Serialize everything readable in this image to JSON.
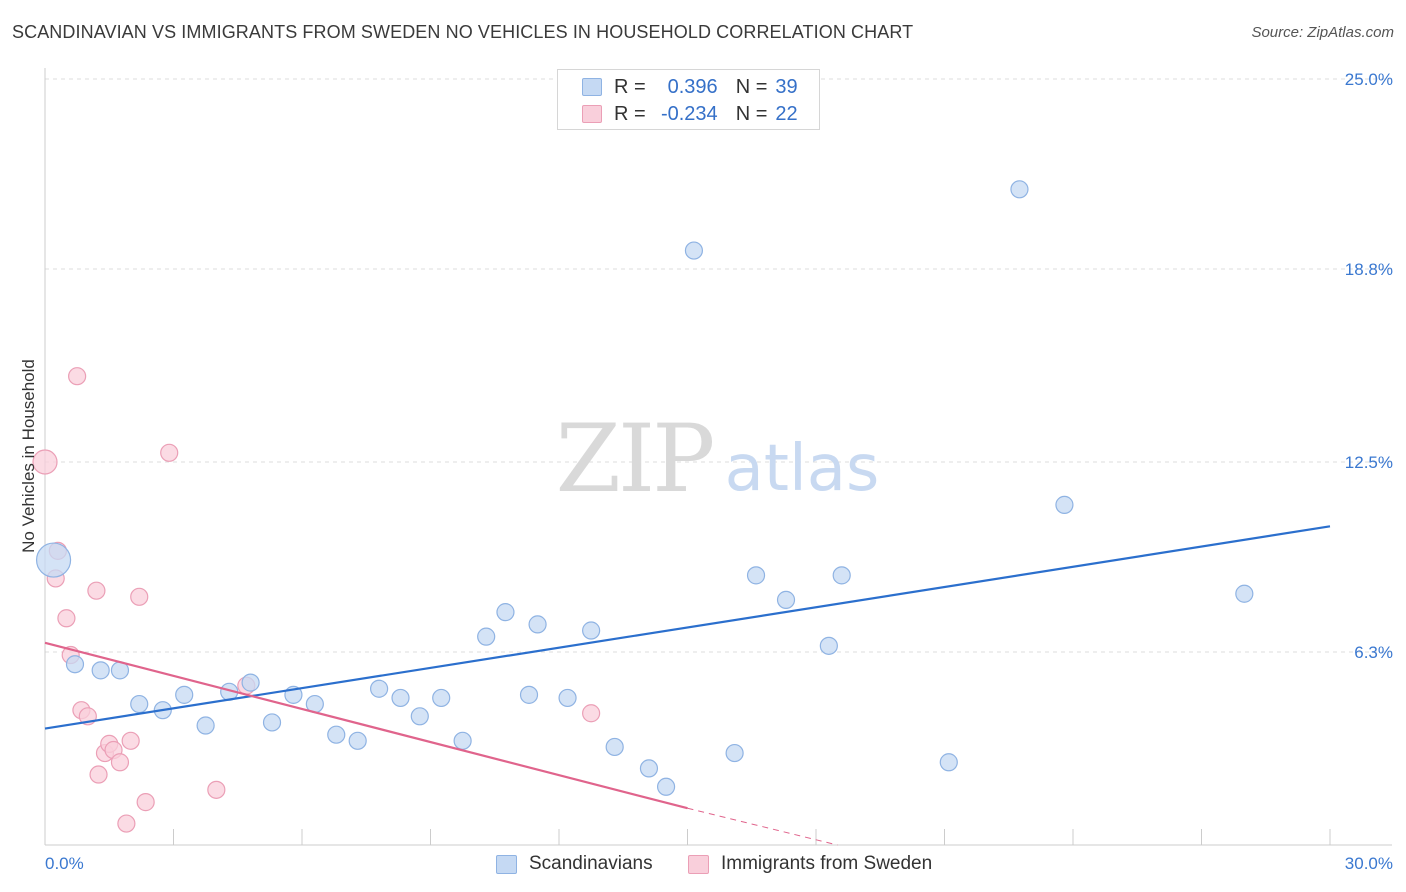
{
  "title": "SCANDINAVIAN VS IMMIGRANTS FROM SWEDEN NO VEHICLES IN HOUSEHOLD CORRELATION CHART",
  "source": "Source: ZipAtlas.com",
  "watermark": {
    "zip": "ZIP",
    "atlas": "atlas"
  },
  "stats": [
    {
      "r_label": "R =",
      "r_value": "0.396",
      "n_label": "N =",
      "n_value": "39",
      "color": "#a9c8ef"
    },
    {
      "r_label": "R =",
      "r_value": "-0.234",
      "n_label": "N =",
      "n_value": "22",
      "color": "#f5b3c6"
    }
  ],
  "legend": [
    {
      "label": "Scandinavians",
      "color": "#a9c8ef"
    },
    {
      "label": "Immigrants from Sweden",
      "color": "#f5b3c6"
    }
  ],
  "colors": {
    "blue_fill": "#c5d9f3",
    "blue_stroke": "#8fb3e3",
    "blue_line": "#2b6fcd",
    "pink_fill": "#f9cfdb",
    "pink_stroke": "#eb9fb6",
    "pink_line": "#e0648c",
    "tick_label": "#3a78d0",
    "grid": "#dddddd",
    "axis": "#cccccc"
  },
  "chart_data": {
    "type": "scatter",
    "title": "SCANDINAVIAN VS IMMIGRANTS FROM SWEDEN NO VEHICLES IN HOUSEHOLD CORRELATION CHART",
    "xlabel": "",
    "ylabel": "No Vehicles in Household",
    "xlim": [
      0,
      30
    ],
    "ylim": [
      0,
      25
    ],
    "x_tick_labels": [
      "0.0%",
      "30.0%"
    ],
    "y_ticks": [
      6.3,
      12.5,
      18.8,
      25.0
    ],
    "y_tick_labels": [
      "6.3%",
      "12.5%",
      "18.8%",
      "25.0%"
    ],
    "grid": "horizontal dashed",
    "legend_position": "bottom",
    "series": [
      {
        "name": "Scandinavians",
        "color": "#a9c8ef",
        "points": [
          {
            "x": 0.2,
            "y": 9.3,
            "size": "large"
          },
          {
            "x": 0.7,
            "y": 5.9
          },
          {
            "x": 1.3,
            "y": 5.7
          },
          {
            "x": 1.75,
            "y": 5.7
          },
          {
            "x": 2.2,
            "y": 4.6
          },
          {
            "x": 2.75,
            "y": 4.4
          },
          {
            "x": 3.25,
            "y": 4.9
          },
          {
            "x": 3.75,
            "y": 3.9
          },
          {
            "x": 4.3,
            "y": 5.0
          },
          {
            "x": 4.8,
            "y": 5.3
          },
          {
            "x": 5.3,
            "y": 4.0
          },
          {
            "x": 5.8,
            "y": 4.9
          },
          {
            "x": 6.3,
            "y": 4.6
          },
          {
            "x": 6.8,
            "y": 3.6
          },
          {
            "x": 7.3,
            "y": 3.4
          },
          {
            "x": 7.8,
            "y": 5.1
          },
          {
            "x": 8.3,
            "y": 4.8
          },
          {
            "x": 8.75,
            "y": 4.2
          },
          {
            "x": 9.25,
            "y": 4.8
          },
          {
            "x": 9.75,
            "y": 3.4
          },
          {
            "x": 10.3,
            "y": 6.8
          },
          {
            "x": 10.75,
            "y": 7.6
          },
          {
            "x": 11.3,
            "y": 4.9
          },
          {
            "x": 11.5,
            "y": 7.2
          },
          {
            "x": 12.2,
            "y": 4.8
          },
          {
            "x": 12.75,
            "y": 7.0
          },
          {
            "x": 13.3,
            "y": 3.2
          },
          {
            "x": 14.1,
            "y": 2.5
          },
          {
            "x": 14.5,
            "y": 1.9
          },
          {
            "x": 15.15,
            "y": 19.4
          },
          {
            "x": 16.1,
            "y": 3.0
          },
          {
            "x": 16.6,
            "y": 8.8
          },
          {
            "x": 17.3,
            "y": 8.0
          },
          {
            "x": 18.3,
            "y": 6.5
          },
          {
            "x": 18.6,
            "y": 8.8
          },
          {
            "x": 21.1,
            "y": 2.7
          },
          {
            "x": 22.75,
            "y": 21.4
          },
          {
            "x": 23.8,
            "y": 11.1
          },
          {
            "x": 28.0,
            "y": 8.2
          }
        ],
        "trend": {
          "x": [
            0,
            30
          ],
          "y": [
            3.8,
            10.4
          ]
        }
      },
      {
        "name": "Immigrants from Sweden",
        "color": "#f5b3c6",
        "points": [
          {
            "x": 0.0,
            "y": 12.5,
            "size": "medium"
          },
          {
            "x": 0.25,
            "y": 8.7
          },
          {
            "x": 0.3,
            "y": 9.6
          },
          {
            "x": 0.5,
            "y": 7.4
          },
          {
            "x": 0.6,
            "y": 6.2
          },
          {
            "x": 0.75,
            "y": 15.3
          },
          {
            "x": 0.85,
            "y": 4.4
          },
          {
            "x": 1.0,
            "y": 4.2
          },
          {
            "x": 1.2,
            "y": 8.3
          },
          {
            "x": 1.25,
            "y": 2.3
          },
          {
            "x": 1.4,
            "y": 3.0
          },
          {
            "x": 1.5,
            "y": 3.3
          },
          {
            "x": 1.6,
            "y": 3.1
          },
          {
            "x": 1.75,
            "y": 2.7
          },
          {
            "x": 1.9,
            "y": 0.7
          },
          {
            "x": 2.0,
            "y": 3.4
          },
          {
            "x": 2.2,
            "y": 8.1
          },
          {
            "x": 2.35,
            "y": 1.4
          },
          {
            "x": 2.9,
            "y": 12.8
          },
          {
            "x": 4.0,
            "y": 1.8
          },
          {
            "x": 4.7,
            "y": 5.2
          },
          {
            "x": 12.75,
            "y": 4.3
          }
        ],
        "trend": {
          "x": [
            0,
            15
          ],
          "y": [
            6.6,
            1.2
          ]
        },
        "trend_extension": {
          "x": [
            15,
            18.5
          ],
          "y": [
            1.2,
            0.0
          ]
        }
      }
    ]
  }
}
